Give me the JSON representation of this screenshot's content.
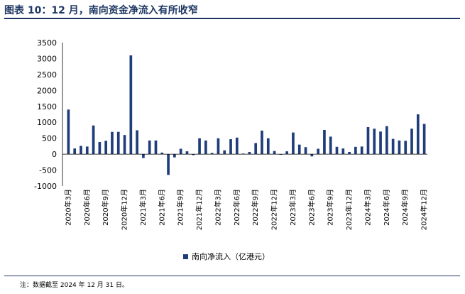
{
  "title": "图表 10：12 月，南向资金净流入有所收窄",
  "note": "注：数据截至 2024 年 12 月 31 日。",
  "legend_label": "南向净流入（亿港元）",
  "colors": {
    "bar": "#1f3d7a",
    "title": "#1f3864",
    "axis": "#000000"
  },
  "chart_data": {
    "type": "bar",
    "title": "",
    "xlabel": "",
    "ylabel": "",
    "ylim": [
      -1000,
      3500
    ],
    "yticks": [
      -1000,
      -500,
      0,
      500,
      1000,
      1500,
      2000,
      2500,
      3000,
      3500
    ],
    "grid": false,
    "legend_position": "bottom",
    "categories": [
      "2020年3月",
      "2020年4月",
      "2020年5月",
      "2020年6月",
      "2020年7月",
      "2020年8月",
      "2020年9月",
      "2020年10月",
      "2020年11月",
      "2020年12月",
      "2021年1月",
      "2021年2月",
      "2021年3月",
      "2021年4月",
      "2021年5月",
      "2021年6月",
      "2021年7月",
      "2021年8月",
      "2021年9月",
      "2021年10月",
      "2021年11月",
      "2021年12月",
      "2022年1月",
      "2022年2月",
      "2022年3月",
      "2022年4月",
      "2022年5月",
      "2022年6月",
      "2022年7月",
      "2022年8月",
      "2022年9月",
      "2022年10月",
      "2022年11月",
      "2022年12月",
      "2023年1月",
      "2023年2月",
      "2023年3月",
      "2023年4月",
      "2023年5月",
      "2023年6月",
      "2023年7月",
      "2023年8月",
      "2023年9月",
      "2023年10月",
      "2023年11月",
      "2023年12月",
      "2024年1月",
      "2024年2月",
      "2024年3月",
      "2024年4月",
      "2024年5月",
      "2024年6月",
      "2024年7月",
      "2024年8月",
      "2024年9月",
      "2024年10月",
      "2024年11月",
      "2024年12月"
    ],
    "xtick_labels": [
      "2020年3月",
      "2020年6月",
      "2020年9月",
      "2020年12月",
      "2021年3月",
      "2021年6月",
      "2021年9月",
      "2021年12月",
      "2022年3月",
      "2022年6月",
      "2022年9月",
      "2022年12月",
      "2023年3月",
      "2023年6月",
      "2023年9月",
      "2023年12月",
      "2024年3月",
      "2024年6月",
      "2024年9月",
      "2024年12月"
    ],
    "series": [
      {
        "name": "南向净流入（亿港元）",
        "values": [
          1400,
          180,
          260,
          240,
          900,
          380,
          420,
          700,
          700,
          600,
          3100,
          750,
          -120,
          430,
          430,
          50,
          -650,
          -100,
          170,
          90,
          -30,
          500,
          430,
          40,
          500,
          120,
          470,
          520,
          20,
          70,
          350,
          740,
          500,
          100,
          0,
          90,
          680,
          300,
          220,
          -70,
          170,
          760,
          550,
          230,
          180,
          70,
          230,
          240,
          850,
          800,
          710,
          880,
          480,
          430,
          420,
          800,
          1250,
          950
        ]
      }
    ]
  }
}
